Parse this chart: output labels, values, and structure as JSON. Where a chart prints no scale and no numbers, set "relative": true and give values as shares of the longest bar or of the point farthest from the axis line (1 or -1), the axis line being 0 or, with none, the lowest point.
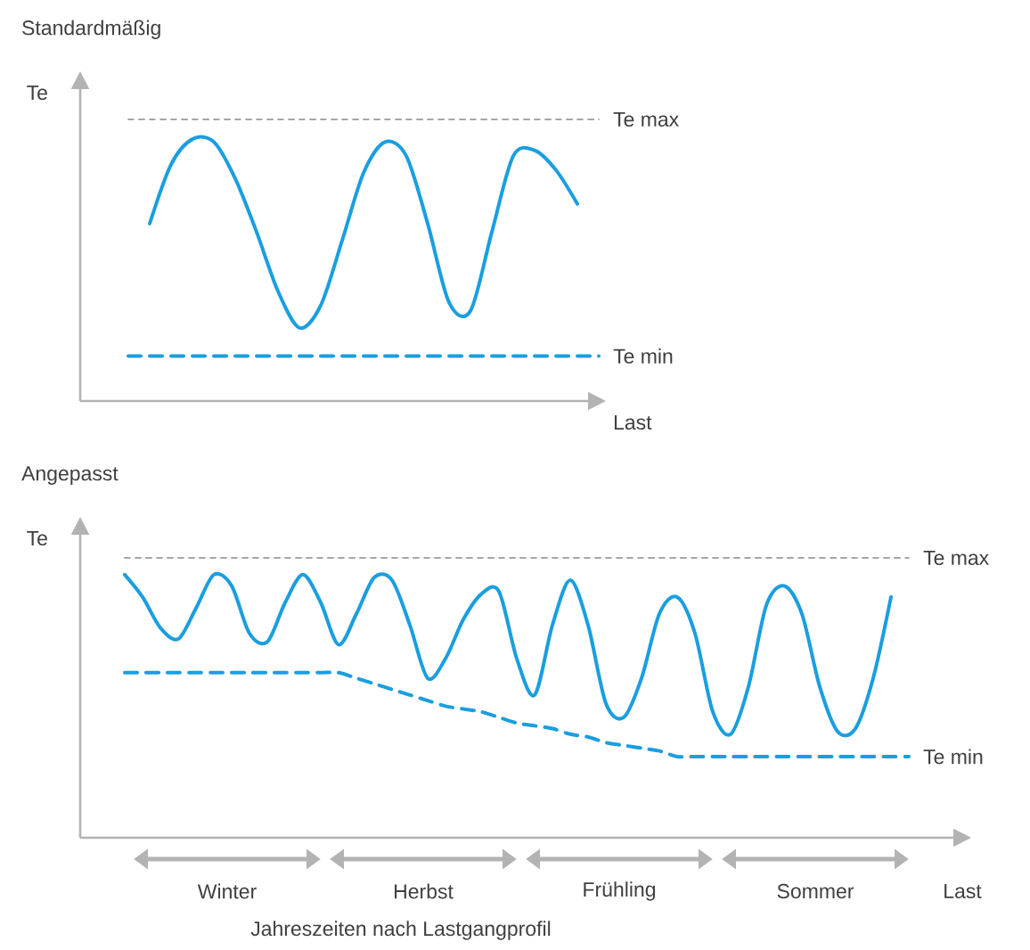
{
  "chart_data": [
    {
      "type": "line",
      "title": "Standardmäßig",
      "ylabel": "Te",
      "xlabel": "Last",
      "relative": true,
      "categories": [
        null,
        null,
        null,
        null,
        null,
        null,
        null,
        null,
        null,
        null,
        null,
        null,
        null,
        null,
        null,
        null,
        null,
        null,
        null,
        null,
        null,
        null,
        null
      ],
      "series": [
        {
          "name": "Te max",
          "color": "#a6a6a6",
          "line_style": "dotted",
          "values": [
            1,
            1,
            1,
            1,
            1,
            1,
            1,
            1,
            1,
            1,
            1,
            1,
            1,
            1,
            1,
            1,
            1,
            1,
            1,
            1,
            1,
            1,
            1
          ]
        },
        {
          "color": "#1a9ee0",
          "line_style": "solid",
          "values": [
            null,
            0.63,
            0.84,
            0.93,
            0.92,
            0.79,
            0.6,
            0.39,
            0.26,
            0.34,
            0.57,
            0.81,
            0.92,
            0.87,
            0.63,
            0.35,
            0.32,
            0.6,
            0.87,
            0.89,
            0.82,
            0.7,
            null
          ]
        },
        {
          "name": "Te min",
          "color": "#1a9ee0",
          "line_style": "dashed",
          "values": [
            0.16,
            0.16,
            0.16,
            0.16,
            0.16,
            0.16,
            0.16,
            0.16,
            0.16,
            0.16,
            0.16,
            0.16,
            0.16,
            0.16,
            0.16,
            0.16,
            0.16,
            0.16,
            0.16,
            0.16,
            0.16,
            0.16,
            0.16
          ]
        }
      ]
    },
    {
      "type": "line",
      "title": "Angepasst",
      "ylabel": "Te",
      "xlabel": "Last",
      "relative": true,
      "categories": [
        null,
        null,
        null,
        null,
        null,
        null,
        null,
        null,
        null,
        null,
        null,
        null,
        null,
        null,
        null,
        null,
        null,
        null,
        null,
        null,
        null,
        null,
        null,
        null,
        null,
        null,
        null,
        null,
        null,
        null,
        null,
        null,
        null,
        null,
        null,
        null,
        null,
        null,
        null,
        null,
        null,
        null,
        null,
        null,
        null
      ],
      "series": [
        {
          "name": "Te max",
          "color": "#a6a6a6",
          "line_style": "dotted",
          "values": [
            1,
            1,
            1,
            1,
            1,
            1,
            1,
            1,
            1,
            1,
            1,
            1,
            1,
            1,
            1,
            1,
            1,
            1,
            1,
            1,
            1,
            1,
            1,
            1,
            1,
            1,
            1,
            1,
            1,
            1,
            1,
            1,
            1,
            1,
            1,
            1,
            1,
            1,
            1,
            1,
            1,
            1,
            1,
            1,
            1
          ]
        },
        {
          "color": "#1a9ee0",
          "line_style": "solid",
          "values": [
            0.94,
            0.86,
            0.75,
            0.71,
            0.82,
            0.94,
            0.9,
            0.73,
            0.7,
            0.84,
            0.94,
            0.84,
            0.69,
            0.8,
            0.93,
            0.92,
            0.76,
            0.57,
            0.64,
            0.78,
            0.87,
            0.88,
            0.64,
            0.51,
            0.76,
            0.92,
            0.76,
            0.48,
            0.43,
            0.57,
            0.8,
            0.86,
            0.73,
            0.45,
            0.37,
            0.54,
            0.83,
            0.9,
            0.8,
            0.54,
            0.38,
            0.39,
            0.57,
            0.86,
            null
          ]
        },
        {
          "name": "Te min",
          "color": "#1a9ee0",
          "line_style": "dashed",
          "values": [
            0.59,
            0.59,
            0.59,
            0.59,
            0.59,
            0.59,
            0.59,
            0.59,
            0.59,
            0.59,
            0.59,
            0.59,
            0.59,
            0.57,
            0.55,
            0.53,
            0.51,
            0.49,
            0.47,
            0.46,
            0.45,
            0.43,
            0.41,
            0.4,
            0.39,
            0.37,
            0.36,
            0.34,
            0.33,
            0.32,
            0.31,
            0.29,
            0.29,
            0.29,
            0.29,
            0.29,
            0.29,
            0.29,
            0.29,
            0.29,
            0.29,
            0.29,
            0.29,
            0.29,
            0.29
          ]
        }
      ],
      "annotations": [
        "Winter",
        "Herbst",
        "Frühling",
        "Sommer",
        "Jahreszeiten nach Lastgangprofil"
      ]
    }
  ]
}
